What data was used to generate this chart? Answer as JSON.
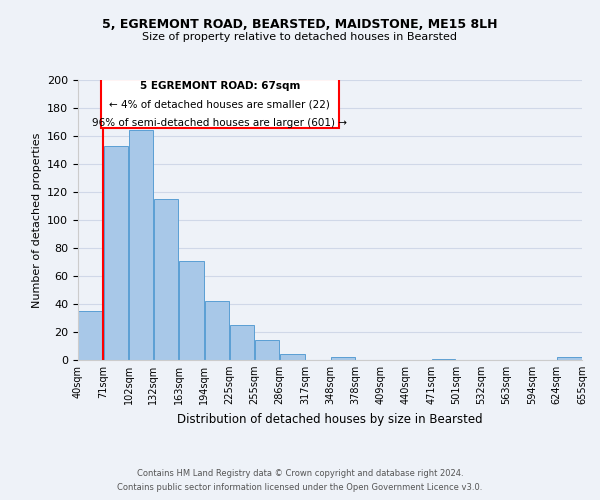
{
  "title1": "5, EGREMONT ROAD, BEARSTED, MAIDSTONE, ME15 8LH",
  "title2": "Size of property relative to detached houses in Bearsted",
  "xlabel": "Distribution of detached houses by size in Bearsted",
  "ylabel": "Number of detached properties",
  "bar_left_edges": [
    40,
    71,
    102,
    132,
    163,
    194,
    225,
    255,
    286,
    317,
    348,
    378,
    409,
    440,
    471,
    501,
    532,
    563,
    594,
    624
  ],
  "bar_widths": [
    31,
    31,
    30,
    31,
    31,
    31,
    30,
    31,
    31,
    31,
    30,
    31,
    31,
    31,
    30,
    31,
    31,
    31,
    30,
    31
  ],
  "bar_heights": [
    35,
    153,
    164,
    115,
    71,
    42,
    25,
    14,
    4,
    0,
    2,
    0,
    0,
    0,
    1,
    0,
    0,
    0,
    0,
    2
  ],
  "bar_color": "#a8c8e8",
  "bar_edgecolor": "#5a9fd4",
  "tick_labels": [
    "40sqm",
    "71sqm",
    "102sqm",
    "132sqm",
    "163sqm",
    "194sqm",
    "225sqm",
    "255sqm",
    "286sqm",
    "317sqm",
    "348sqm",
    "378sqm",
    "409sqm",
    "440sqm",
    "471sqm",
    "501sqm",
    "532sqm",
    "563sqm",
    "594sqm",
    "624sqm",
    "655sqm"
  ],
  "ylim": [
    0,
    200
  ],
  "yticks": [
    0,
    20,
    40,
    60,
    80,
    100,
    120,
    140,
    160,
    180,
    200
  ],
  "property_line_x": 71,
  "annotation_title": "5 EGREMONT ROAD: 67sqm",
  "annotation_line1": "← 4% of detached houses are smaller (22)",
  "annotation_line2": "96% of semi-detached houses are larger (601) →",
  "footer1": "Contains HM Land Registry data © Crown copyright and database right 2024.",
  "footer2": "Contains public sector information licensed under the Open Government Licence v3.0.",
  "bg_color": "#eef2f8",
  "grid_color": "#d0d8e8"
}
